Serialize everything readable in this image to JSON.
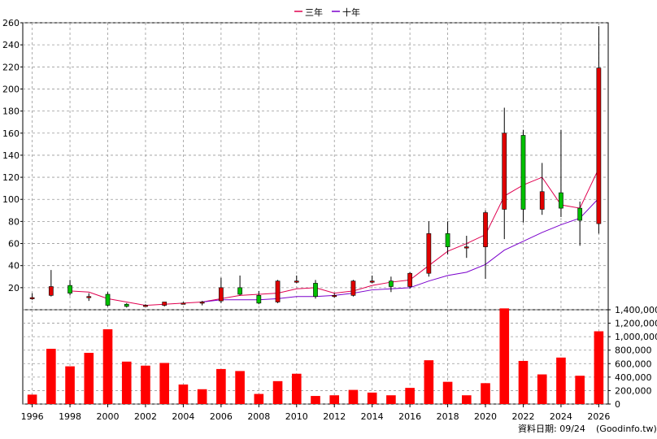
{
  "chart_data": [
    {
      "type": "candlestick",
      "legend": [
        {
          "name": "三年",
          "color": "#e0004f"
        },
        {
          "name": "十年",
          "color": "#7a00cc"
        }
      ],
      "legend_placement": "top-center",
      "grid": true,
      "ylim": [
        0,
        260
      ],
      "yticks": [
        20,
        40,
        60,
        80,
        100,
        120,
        140,
        160,
        180,
        200,
        220,
        240,
        260
      ],
      "y_axis_side": "left",
      "candles": [
        {
          "year": 1996,
          "open": 11,
          "high": 15,
          "low": 9,
          "close": 11
        },
        {
          "year": 1997,
          "open": 13,
          "high": 36,
          "low": 12,
          "close": 21
        },
        {
          "year": 1998,
          "open": 22,
          "high": 27,
          "low": 13,
          "close": 15
        },
        {
          "year": 1999,
          "open": 12,
          "high": 15,
          "low": 8,
          "close": 12
        },
        {
          "year": 2000,
          "open": 14,
          "high": 16,
          "low": 3,
          "close": 4
        },
        {
          "year": 2001,
          "open": 5,
          "high": 6,
          "low": 2,
          "close": 3
        },
        {
          "year": 2002,
          "open": 4,
          "high": 5,
          "low": 3,
          "close": 4
        },
        {
          "year": 2003,
          "open": 4,
          "high": 7,
          "low": 3,
          "close": 7
        },
        {
          "year": 2004,
          "open": 6,
          "high": 7,
          "low": 5,
          "close": 6
        },
        {
          "year": 2005,
          "open": 6,
          "high": 8,
          "low": 4,
          "close": 7
        },
        {
          "year": 2006,
          "open": 8,
          "high": 29,
          "low": 6,
          "close": 20
        },
        {
          "year": 2007,
          "open": 20,
          "high": 31,
          "low": 13,
          "close": 14
        },
        {
          "year": 2008,
          "open": 13,
          "high": 17,
          "low": 5,
          "close": 6
        },
        {
          "year": 2009,
          "open": 7,
          "high": 27,
          "low": 6,
          "close": 26
        },
        {
          "year": 2010,
          "open": 25,
          "high": 31,
          "low": 24,
          "close": 26
        },
        {
          "year": 2011,
          "open": 24,
          "high": 27,
          "low": 10,
          "close": 12
        },
        {
          "year": 2012,
          "open": 12,
          "high": 15,
          "low": 11,
          "close": 13
        },
        {
          "year": 2013,
          "open": 13,
          "high": 27,
          "low": 12,
          "close": 26
        },
        {
          "year": 2014,
          "open": 25,
          "high": 31,
          "low": 24,
          "close": 26
        },
        {
          "year": 2015,
          "open": 26,
          "high": 30,
          "low": 16,
          "close": 21
        },
        {
          "year": 2016,
          "open": 21,
          "high": 34,
          "low": 19,
          "close": 33
        },
        {
          "year": 2017,
          "open": 33,
          "high": 80,
          "low": 30,
          "close": 69
        },
        {
          "year": 2018,
          "open": 69,
          "high": 80,
          "low": 50,
          "close": 57
        },
        {
          "year": 2019,
          "open": 57,
          "high": 67,
          "low": 47,
          "close": 57
        },
        {
          "year": 2020,
          "open": 57,
          "high": 90,
          "low": 28,
          "close": 88
        },
        {
          "year": 2021,
          "open": 91,
          "high": 183,
          "low": 64,
          "close": 160
        },
        {
          "year": 2022,
          "open": 158,
          "high": 163,
          "low": 79,
          "close": 91
        },
        {
          "year": 2023,
          "open": 91,
          "high": 133,
          "low": 86,
          "close": 107
        },
        {
          "year": 2024,
          "open": 106,
          "high": 163,
          "low": 84,
          "close": 92
        },
        {
          "year": 2025,
          "open": 92,
          "high": 98,
          "low": 58,
          "close": 81
        },
        {
          "year": 2026,
          "open": 78,
          "high": 257,
          "low": 69,
          "close": 219
        }
      ],
      "series": [
        {
          "name": "三年",
          "x": [
            1998,
            1999,
            2000,
            2001,
            2002,
            2003,
            2004,
            2005,
            2006,
            2007,
            2008,
            2009,
            2010,
            2011,
            2012,
            2013,
            2014,
            2015,
            2016,
            2017,
            2018,
            2019,
            2020,
            2021,
            2022,
            2023,
            2024,
            2025,
            2026
          ],
          "values": [
            17,
            16,
            10,
            7,
            4,
            5,
            6,
            7,
            10,
            13,
            14,
            15,
            19,
            20,
            15,
            17,
            22,
            25,
            27,
            40,
            53,
            60,
            68,
            103,
            113,
            120,
            95,
            92,
            128
          ]
        },
        {
          "name": "十年",
          "x": [
            2005,
            2006,
            2007,
            2008,
            2009,
            2010,
            2011,
            2012,
            2013,
            2014,
            2015,
            2016,
            2017,
            2018,
            2019,
            2020,
            2021,
            2022,
            2023,
            2024,
            2025,
            2026
          ],
          "values": [
            7,
            9,
            9,
            9,
            10,
            12,
            12,
            13,
            15,
            18,
            19,
            20,
            26,
            31,
            34,
            41,
            54,
            62,
            70,
            77,
            83,
            101
          ]
        }
      ]
    },
    {
      "type": "bar",
      "grid": true,
      "ylim": [
        0,
        1400000
      ],
      "yticks": [
        0,
        200000,
        400000,
        600000,
        800000,
        1000000,
        1200000,
        1400000
      ],
      "ytick_labels": [
        "0",
        "200,000",
        "400,000",
        "600,000",
        "800,000",
        "1,000,000",
        "1,200,000",
        "1,400,000"
      ],
      "y_axis_side": "right",
      "bar_color": "#ff0000",
      "categories": [
        1996,
        1997,
        1998,
        1999,
        2000,
        2001,
        2002,
        2003,
        2004,
        2005,
        2006,
        2007,
        2008,
        2009,
        2010,
        2011,
        2012,
        2013,
        2014,
        2015,
        2016,
        2017,
        2018,
        2019,
        2020,
        2021,
        2022,
        2023,
        2024,
        2025,
        2026
      ],
      "values": [
        140000,
        820000,
        560000,
        760000,
        1110000,
        630000,
        570000,
        610000,
        290000,
        220000,
        520000,
        490000,
        150000,
        340000,
        450000,
        120000,
        130000,
        210000,
        170000,
        130000,
        240000,
        650000,
        330000,
        130000,
        310000,
        1420000,
        640000,
        440000,
        690000,
        420000,
        1080000
      ]
    }
  ],
  "x_axis": {
    "xlim": [
      1995.5,
      2026.5
    ],
    "tick_labels": [
      "1996",
      "1998",
      "2000",
      "2002",
      "2004",
      "2006",
      "2008",
      "2010",
      "2012",
      "2014",
      "2016",
      "2018",
      "2020",
      "2022",
      "2024",
      "2026"
    ]
  },
  "footer": {
    "data_date": "資料日期: 09/24",
    "source": "(Goodinfo.tw)"
  },
  "colors": {
    "up": "#e00000",
    "down": "#00c000",
    "grid": "#999999",
    "wick": "#000000"
  }
}
